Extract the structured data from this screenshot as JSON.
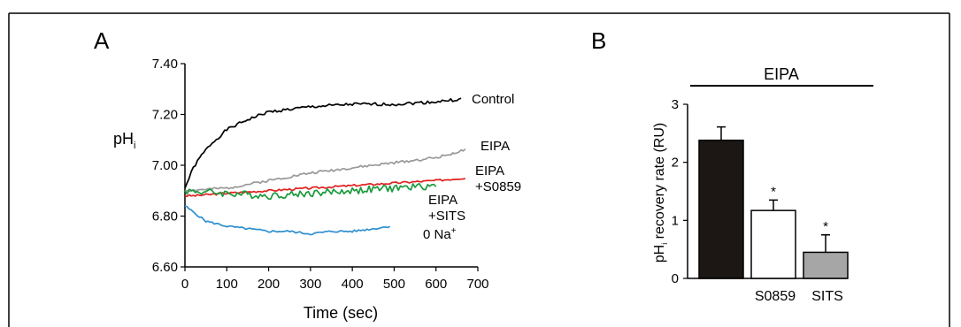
{
  "panels": {
    "a_label": "A",
    "b_label": "B"
  },
  "chart_data": [
    {
      "type": "line",
      "panel": "A",
      "xlabel": "Time (sec)",
      "ylabel_main": "pH",
      "ylabel_sub": "i",
      "xlim": [
        0,
        700
      ],
      "ylim": [
        6.6,
        7.4
      ],
      "x_ticks": [
        "0",
        "100",
        "200",
        "300",
        "400",
        "500",
        "600",
        "700"
      ],
      "y_ticks": [
        "6.60",
        "6.80",
        "7.00",
        "7.20",
        "7.40"
      ],
      "grid": false,
      "series": [
        {
          "name": "Control",
          "color": "#000000",
          "noise": 0.006,
          "seed": 1,
          "x": [
            0,
            20,
            40,
            60,
            80,
            100,
            150,
            200,
            250,
            300,
            400,
            500,
            600,
            660
          ],
          "y": [
            6.91,
            6.99,
            7.04,
            7.08,
            7.11,
            7.14,
            7.18,
            7.21,
            7.22,
            7.23,
            7.24,
            7.24,
            7.25,
            7.26
          ]
        },
        {
          "name": "EIPA",
          "color": "#999999",
          "noise": 0.005,
          "seed": 2,
          "x": [
            0,
            100,
            200,
            300,
            400,
            500,
            600,
            670
          ],
          "y": [
            6.9,
            6.91,
            6.94,
            6.97,
            6.99,
            7.01,
            7.03,
            7.06
          ]
        },
        {
          "name": "EIPA +S0859",
          "label_line1": "EIPA",
          "label_line2": "+S0859",
          "color": "#e0211f",
          "noise": 0.004,
          "seed": 3,
          "x": [
            0,
            20,
            100,
            200,
            300,
            400,
            500,
            600,
            670
          ],
          "y": [
            6.88,
            6.88,
            6.89,
            6.9,
            6.91,
            6.92,
            6.93,
            6.94,
            6.95
          ]
        },
        {
          "name": "EIPA +SITS",
          "label_line1": "EIPA",
          "label_line2": "+SITS",
          "color": "#1a9a3c",
          "noise": 0.014,
          "seed": 4,
          "x": [
            0,
            100,
            200,
            300,
            400,
            500,
            600
          ],
          "y": [
            6.9,
            6.89,
            6.88,
            6.89,
            6.9,
            6.91,
            6.92
          ]
        },
        {
          "name": "0 Na+",
          "label_main": "0 Na",
          "label_sup": "+",
          "color": "#2f8fce",
          "noise": 0.004,
          "seed": 5,
          "x": [
            0,
            50,
            100,
            150,
            200,
            250,
            300,
            350,
            400,
            450,
            490
          ],
          "y": [
            6.84,
            6.78,
            6.76,
            6.75,
            6.74,
            6.74,
            6.73,
            6.74,
            6.74,
            6.75,
            6.76
          ]
        }
      ]
    },
    {
      "type": "bar",
      "panel": "B",
      "title": "EIPA",
      "ylabel_main": "pH",
      "ylabel_sub": "i",
      "ylabel_rest": " recovery rate (RU)",
      "ylim": [
        0,
        3
      ],
      "y_ticks": [
        "0",
        "1",
        "2",
        "3"
      ],
      "categories": [
        "",
        "S0859",
        "SITS"
      ],
      "values": [
        2.38,
        1.17,
        0.45
      ],
      "errors": [
        0.23,
        0.18,
        0.3
      ],
      "colors": [
        "#1c1714",
        "#ffffff",
        "#a6a6a6"
      ],
      "significance": [
        "",
        "*",
        "*"
      ]
    }
  ]
}
